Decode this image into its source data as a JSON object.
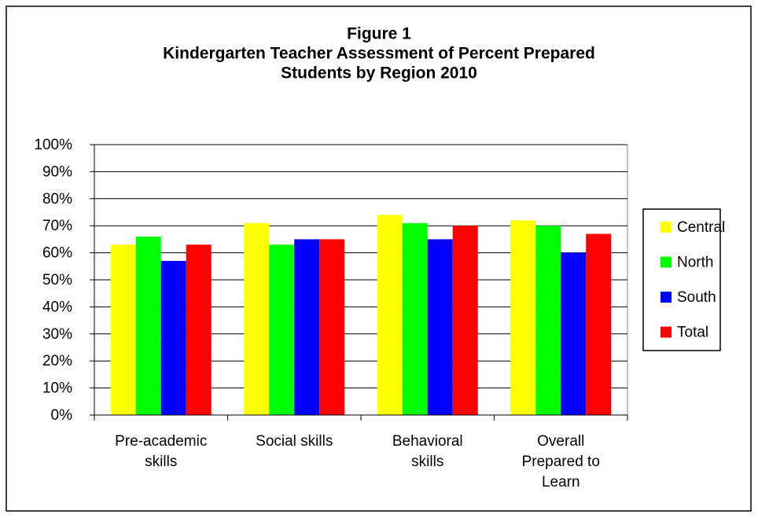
{
  "chart_data": {
    "type": "bar",
    "title": [
      "Figure 1",
      "Kindergarten Teacher Assessment of Percent Prepared",
      "Students by Region 2010"
    ],
    "categories": [
      [
        "Pre-academic",
        "skills"
      ],
      [
        "Social skills"
      ],
      [
        "Behavioral",
        "skills"
      ],
      [
        "Overall",
        "Prepared to",
        "Learn"
      ]
    ],
    "series": [
      {
        "name": "Central",
        "color": "#ffff00",
        "values": [
          63,
          71,
          74,
          72
        ]
      },
      {
        "name": "North",
        "color": "#00ff00",
        "values": [
          66,
          63,
          71,
          70
        ]
      },
      {
        "name": "South",
        "color": "#0000ff",
        "values": [
          57,
          65,
          65,
          60
        ]
      },
      {
        "name": "Total",
        "color": "#ff0000",
        "values": [
          63,
          65,
          70,
          67
        ]
      }
    ],
    "ylim": [
      0,
      100
    ],
    "yticks": [
      {
        "value": 0,
        "label": "0%"
      },
      {
        "value": 10,
        "label": "10%"
      },
      {
        "value": 20,
        "label": "20%"
      },
      {
        "value": 30,
        "label": "30%"
      },
      {
        "value": 40,
        "label": "40%"
      },
      {
        "value": 50,
        "label": "50%"
      },
      {
        "value": 60,
        "label": "60%"
      },
      {
        "value": 70,
        "label": "70%"
      },
      {
        "value": 80,
        "label": "80%"
      },
      {
        "value": 90,
        "label": "90%"
      },
      {
        "value": 100,
        "label": "100%"
      }
    ],
    "grid": true,
    "legend": "right"
  }
}
